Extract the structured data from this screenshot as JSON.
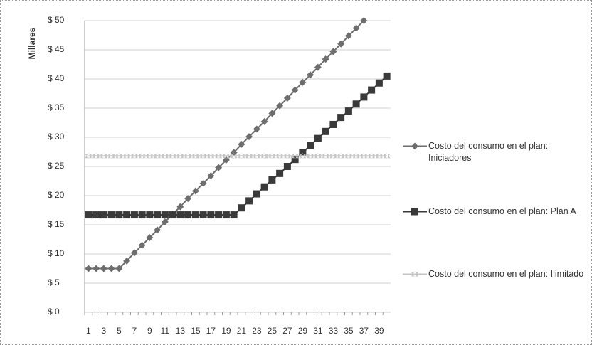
{
  "chart_data": {
    "type": "line",
    "y_label": "Millares",
    "categories": [
      1,
      null,
      3,
      null,
      5,
      null,
      7,
      null,
      9,
      null,
      11,
      null,
      13,
      null,
      15,
      null,
      17,
      null,
      19,
      null,
      21,
      null,
      23,
      null,
      25,
      null,
      27,
      null,
      29,
      null,
      31,
      null,
      33,
      null,
      35,
      null,
      37,
      null,
      39,
      null
    ],
    "series": [
      {
        "name": "Costo del consumo en el plan: Iniciadores",
        "color": "#6e6e6e",
        "values": [
          7.5,
          7.5,
          7.5,
          7.5,
          7.5,
          8.8,
          10.2,
          11.5,
          12.8,
          14.1,
          15.5,
          16.8,
          18.1,
          19.5,
          20.8,
          22.1,
          23.4,
          24.8,
          26.1,
          27.4,
          28.8,
          30.1,
          31.4,
          32.7,
          34.1,
          35.4,
          36.7,
          38.1,
          39.4,
          40.7,
          42.0,
          43.4,
          44.7,
          46.0,
          47.4,
          48.7,
          50.0,
          null,
          null,
          null
        ]
      },
      {
        "name": "Costo del consumo en el plan: Plan A",
        "color": "#3a3a3a",
        "values": [
          16.7,
          16.7,
          16.7,
          16.7,
          16.7,
          16.7,
          16.7,
          16.7,
          16.7,
          16.7,
          16.7,
          16.7,
          16.7,
          16.7,
          16.7,
          16.7,
          16.7,
          16.7,
          16.7,
          16.7,
          17.9,
          19.1,
          20.3,
          21.5,
          22.7,
          23.8,
          25.0,
          26.2,
          27.4,
          28.6,
          29.8,
          31.0,
          32.2,
          33.4,
          34.5,
          35.7,
          36.9,
          38.1,
          39.3,
          40.5
        ]
      },
      {
        "name": "Costo del consumo en el plan: Ilimitado",
        "color": "#c4c4c4",
        "values": [
          26.8,
          26.8,
          26.8,
          26.8,
          26.8,
          26.8,
          26.8,
          26.8,
          26.8,
          26.8,
          26.8,
          26.8,
          26.8,
          26.8,
          26.8,
          26.8,
          26.8,
          26.8,
          26.8,
          26.8,
          26.8,
          26.8,
          26.8,
          26.8,
          26.8,
          26.8,
          26.8,
          26.8,
          26.8,
          26.8,
          26.8,
          26.8,
          26.8,
          26.8,
          26.8,
          26.8,
          26.8,
          26.8,
          26.8,
          26.8
        ]
      }
    ],
    "ylim": [
      0,
      50
    ],
    "yticks": [
      {
        "value": 0,
        "label": "$ 0"
      },
      {
        "value": 5,
        "label": "$ 5"
      },
      {
        "value": 10,
        "label": "$ 10"
      },
      {
        "value": 15,
        "label": "$ 15"
      },
      {
        "value": 20,
        "label": "$ 20"
      },
      {
        "value": 25,
        "label": "$ 25"
      },
      {
        "value": 30,
        "label": "$ 30"
      },
      {
        "value": 35,
        "label": "$ 35"
      },
      {
        "value": 40,
        "label": "$ 40"
      },
      {
        "value": 45,
        "label": "$ 45"
      },
      {
        "value": 50,
        "label": "$ 50"
      }
    ],
    "grid": true,
    "legend": "right"
  }
}
